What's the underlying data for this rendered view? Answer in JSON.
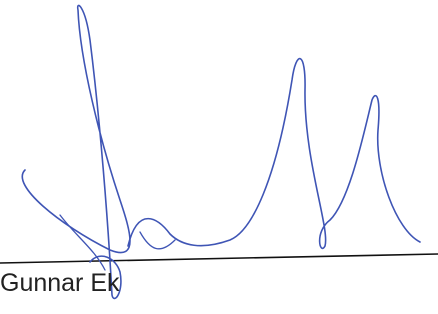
{
  "signature": {
    "name": "Gunnar Ek"
  }
}
